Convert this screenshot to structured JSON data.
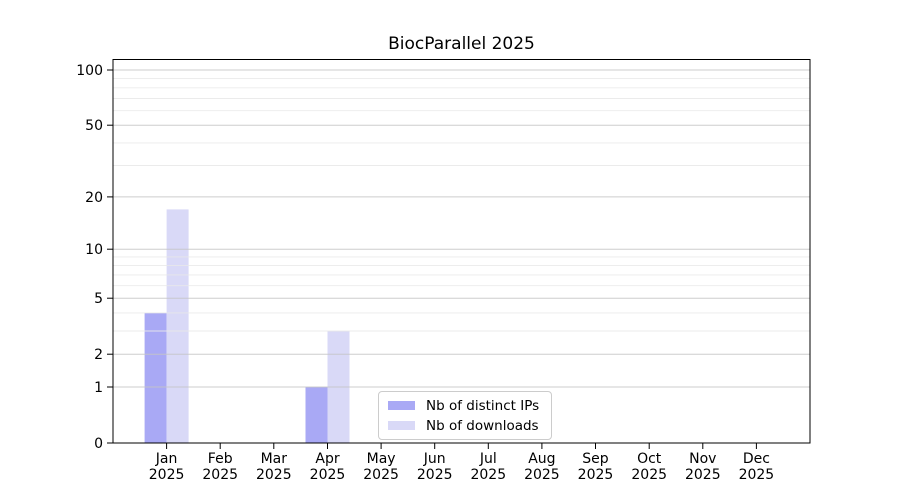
{
  "title": "BiocParallel 2025",
  "chart_data": {
    "type": "bar",
    "title": "BiocParallel 2025",
    "categories": [
      "Jan",
      "Feb",
      "Mar",
      "Apr",
      "May",
      "Jun",
      "Jul",
      "Aug",
      "Sep",
      "Oct",
      "Nov",
      "Dec"
    ],
    "year_label": "2025",
    "series": [
      {
        "name": "Nb of distinct IPs",
        "color": "#a9a9f5",
        "values": [
          4,
          0,
          0,
          1,
          0,
          0,
          0,
          0,
          0,
          0,
          0,
          0
        ]
      },
      {
        "name": "Nb of downloads",
        "color": "#d9d9f7",
        "values": [
          17,
          0,
          0,
          3,
          0,
          0,
          0,
          0,
          0,
          0,
          0,
          0
        ]
      }
    ],
    "yscale": "log10(value+1)",
    "ylim": [
      0,
      114
    ],
    "yticks": [
      0,
      1,
      2,
      5,
      10,
      20,
      50,
      100
    ],
    "minor_yticks": [
      3,
      4,
      6,
      7,
      8,
      9,
      30,
      40,
      60,
      70,
      80,
      90
    ],
    "grid": {
      "major_color": "#c6c6c6",
      "minor_color": "#e9e9e9"
    },
    "spine_color": "#000000",
    "legend_position": "lower center"
  }
}
